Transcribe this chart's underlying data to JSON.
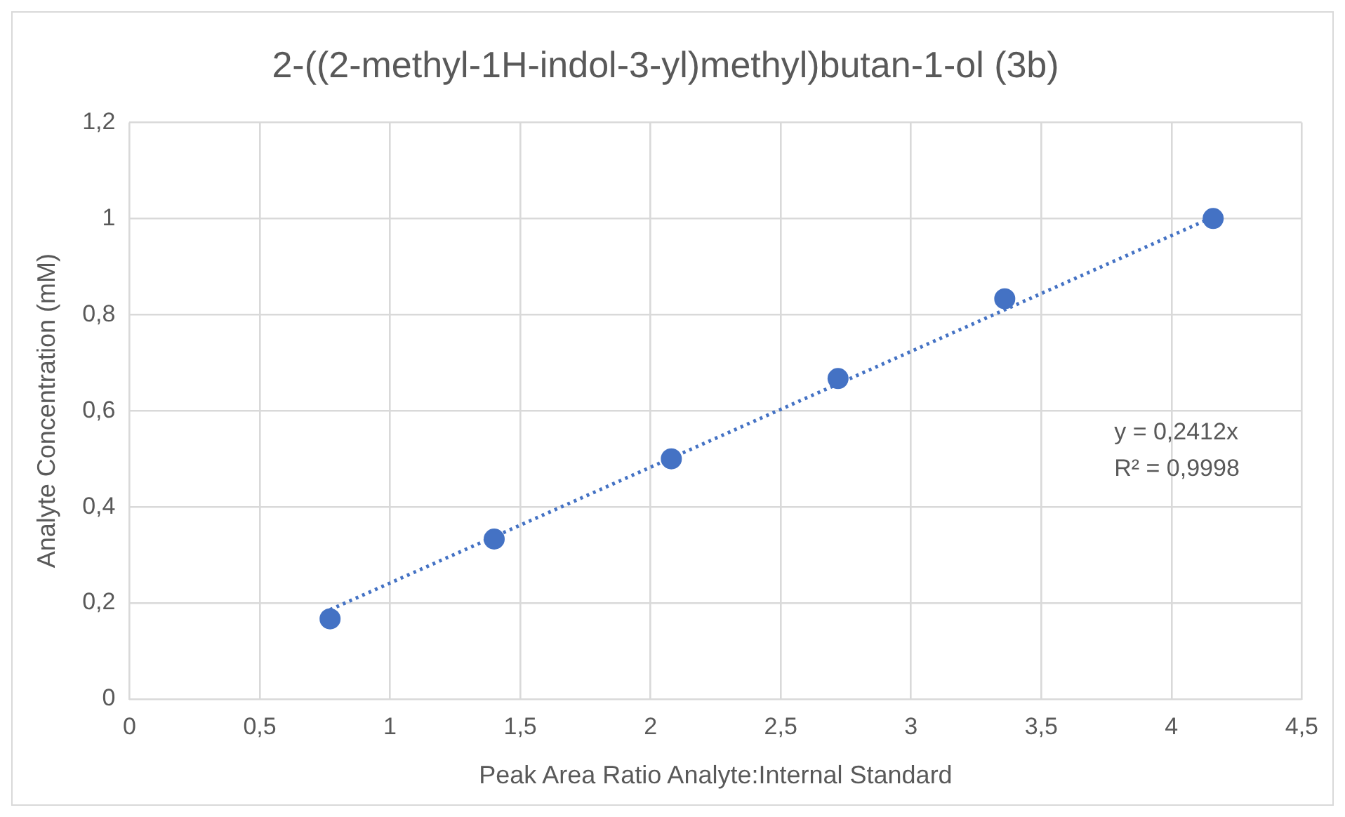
{
  "chart_data": {
    "type": "scatter",
    "title": "2-((2-methyl-1H-indol-3-yl)methyl)butan-1-ol (3b)",
    "xlabel": "Peak Area Ratio Analyte:Internal Standard",
    "ylabel": "Analyte Concentration (mM)",
    "series": [
      {
        "color": "#4472c4",
        "x": [
          0.77,
          1.4,
          2.08,
          2.72,
          3.36,
          4.16
        ],
        "values": [
          0.167,
          0.333,
          0.5,
          0.667,
          0.833,
          1
        ],
        "marker": "circle"
      },
      {
        "type": "line",
        "color": "#4472c4",
        "x": [
          0.77,
          4.16
        ],
        "values": [
          0.186,
          1.003
        ],
        "line_style": "dotted",
        "marker": "none"
      }
    ],
    "xlim": [
      0,
      4.5
    ],
    "xticks": [
      0,
      {
        "value": 0.5,
        "label": "0,5"
      },
      1,
      {
        "value": 1.5,
        "label": "1,5"
      },
      2,
      {
        "value": 2.5,
        "label": "2,5"
      },
      3,
      {
        "value": 3.5,
        "label": "3,5"
      },
      4,
      {
        "value": 4.5,
        "label": "4,5"
      }
    ],
    "ylim": [
      0,
      1.2
    ],
    "yticks": [
      0,
      {
        "value": 0.2,
        "label": "0,2"
      },
      {
        "value": 0.4,
        "label": "0,4"
      },
      {
        "value": 0.6,
        "label": "0,6"
      },
      {
        "value": 0.8,
        "label": "0,8"
      },
      1,
      {
        "value": 1.2,
        "label": "1,2"
      }
    ],
    "grid": true,
    "legend": false,
    "annotations": [
      "y = 0,2412x",
      "R² = 0,9998"
    ]
  }
}
